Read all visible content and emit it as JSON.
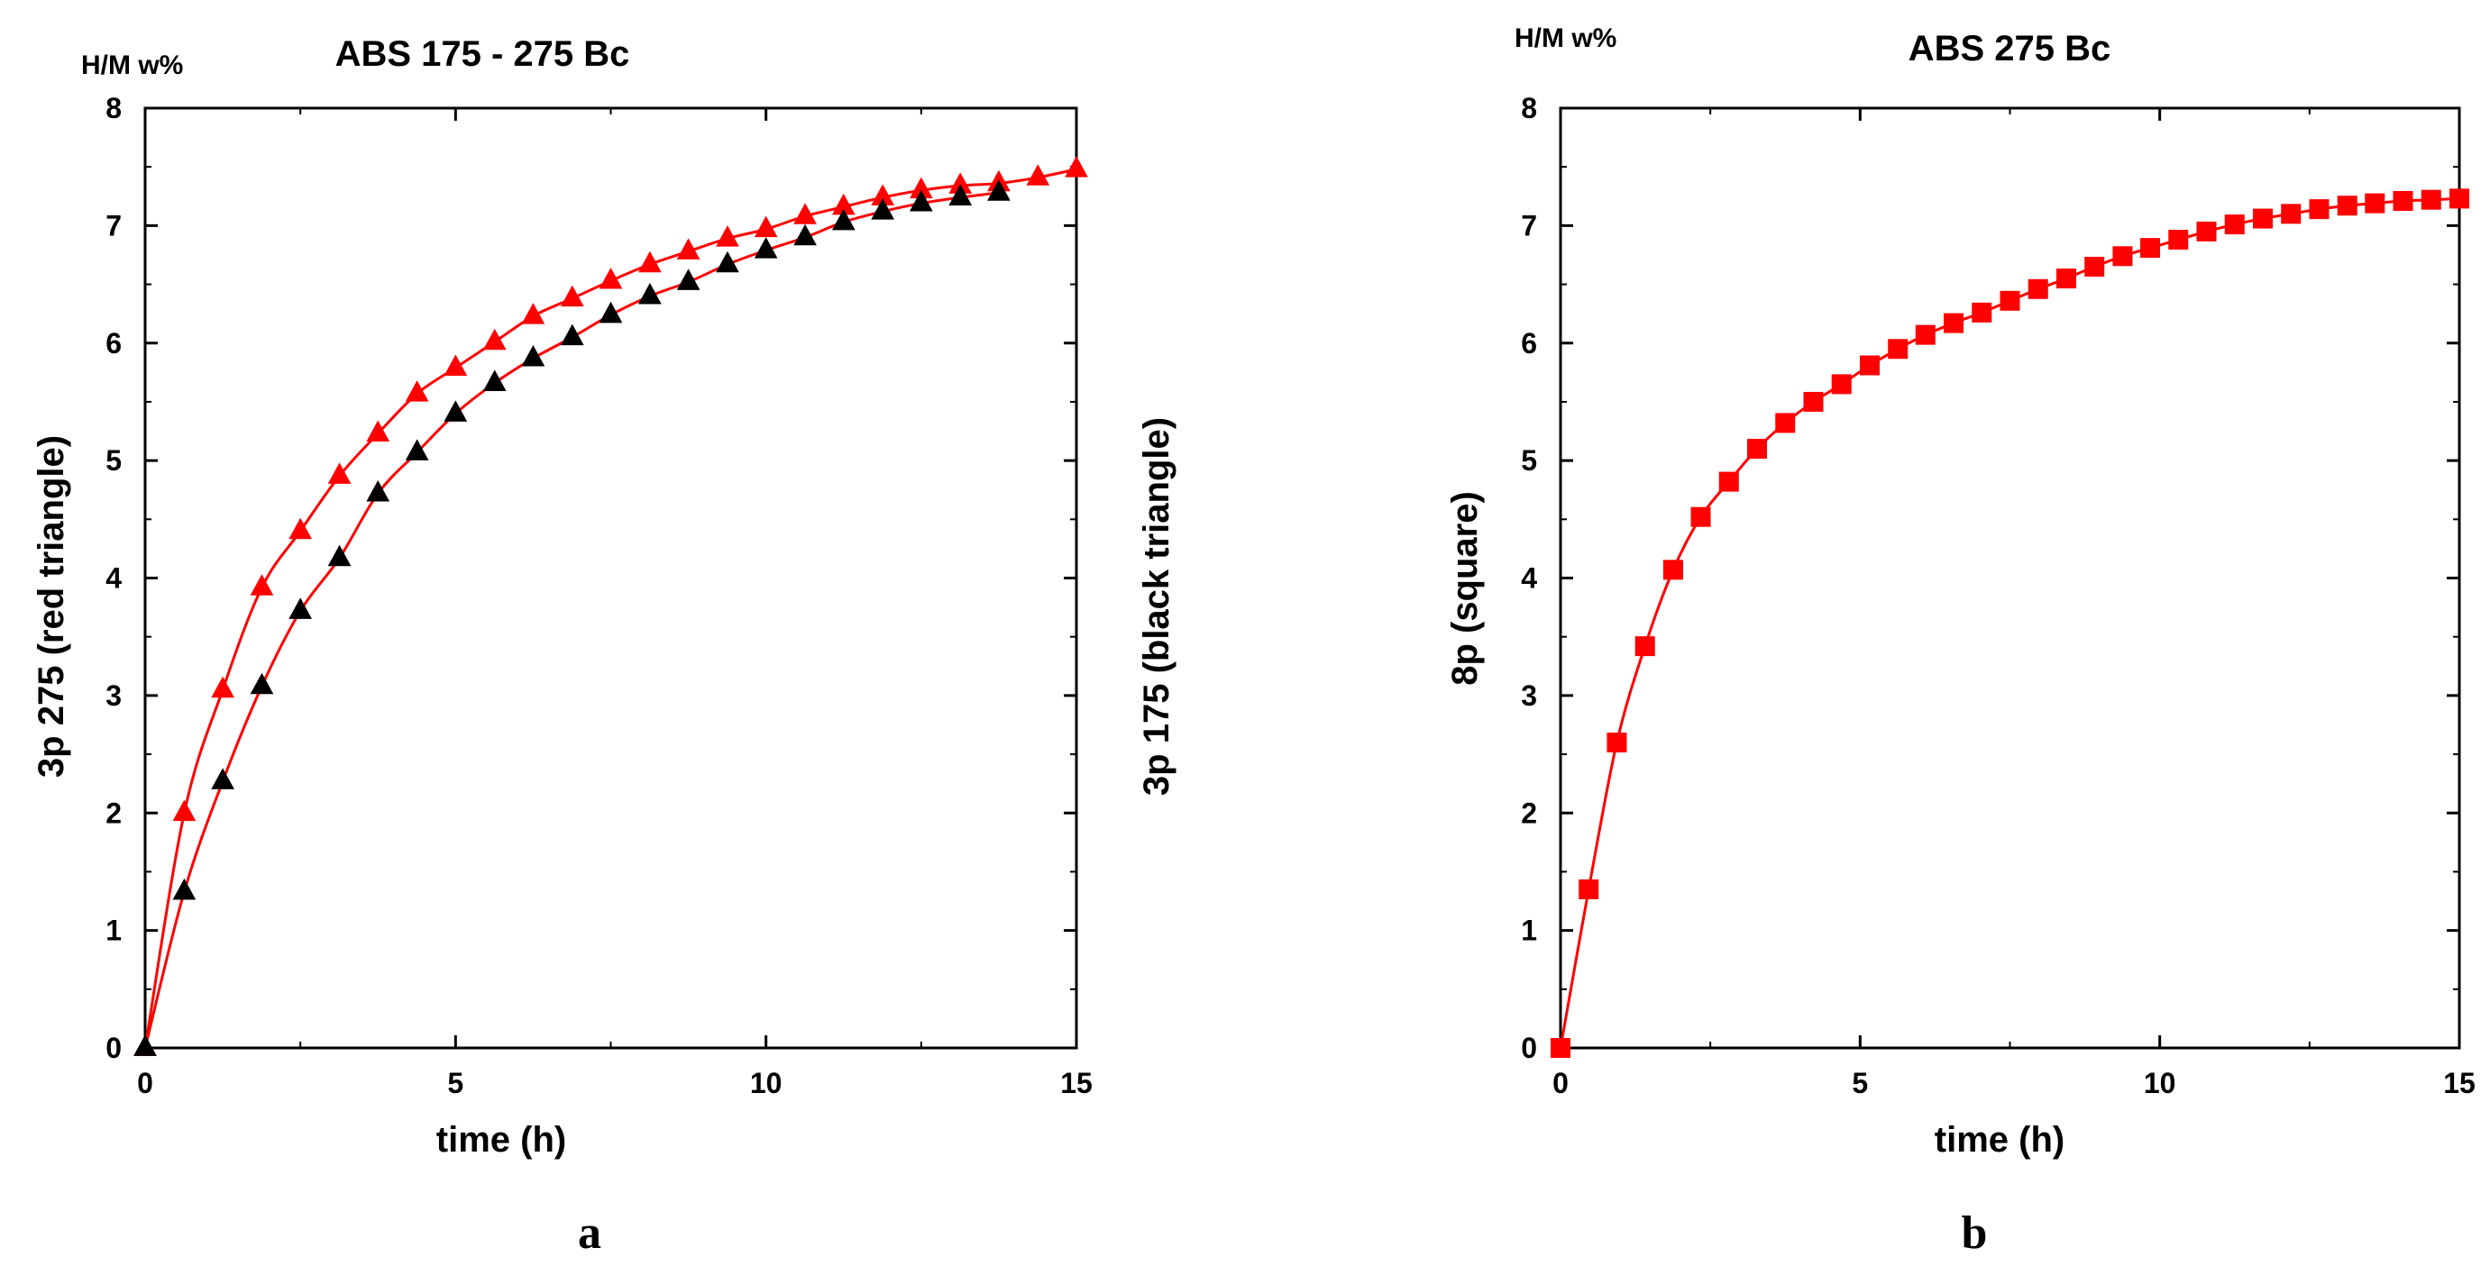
{
  "colors": {
    "red": "#ff0000",
    "black": "#000000",
    "frame": "#000000"
  },
  "chart_data": [
    {
      "type": "line",
      "panel": "a",
      "title": "ABS 175 - 275 Bc",
      "unit_label": "H/M w%",
      "xlabel": "time (h)",
      "ylabel_left": "3p 275 (red triangle)",
      "ylabel_right": "3p 175 (black triangle)",
      "xlim": [
        0,
        15
      ],
      "ylim": [
        0,
        8
      ],
      "xticks": [
        0,
        5,
        10,
        15
      ],
      "yticks": [
        0,
        1,
        2,
        3,
        4,
        5,
        6,
        7,
        8
      ],
      "series": [
        {
          "name": "3p 275",
          "color": "#ff0000",
          "marker": "triangle",
          "x": [
            0,
            0.63,
            1.25,
            1.88,
            2.5,
            3.13,
            3.75,
            4.38,
            5.0,
            5.63,
            6.25,
            6.88,
            7.5,
            8.13,
            8.75,
            9.38,
            10.0,
            10.63,
            11.25,
            11.88,
            12.5,
            13.13,
            13.75,
            14.38,
            15.0
          ],
          "y": [
            0,
            2.0,
            3.05,
            3.92,
            4.4,
            4.87,
            5.23,
            5.57,
            5.79,
            6.01,
            6.23,
            6.38,
            6.53,
            6.67,
            6.78,
            6.89,
            6.97,
            7.08,
            7.16,
            7.24,
            7.3,
            7.34,
            7.36,
            7.41,
            7.48
          ]
        },
        {
          "name": "3p 175",
          "color": "#000000",
          "marker": "triangle",
          "x": [
            0,
            0.63,
            1.25,
            1.88,
            2.5,
            3.13,
            3.75,
            4.38,
            5.0,
            5.63,
            6.25,
            6.88,
            7.5,
            8.13,
            8.75,
            9.38,
            10.0,
            10.63,
            11.25,
            11.88,
            12.5,
            13.13,
            13.75
          ],
          "y": [
            0,
            1.33,
            2.27,
            3.08,
            3.72,
            4.17,
            4.72,
            5.07,
            5.4,
            5.66,
            5.87,
            6.05,
            6.24,
            6.4,
            6.52,
            6.67,
            6.79,
            6.9,
            7.03,
            7.12,
            7.19,
            7.24,
            7.28
          ]
        }
      ]
    },
    {
      "type": "line",
      "panel": "b",
      "title": "ABS 275 Bc",
      "unit_label": "H/M w%",
      "xlabel": "time (h)",
      "ylabel_left": "8p (square)",
      "xlim": [
        0,
        15
      ],
      "ylim": [
        0,
        8
      ],
      "xticks": [
        0,
        5,
        10,
        15
      ],
      "yticks": [
        0,
        1,
        2,
        3,
        4,
        5,
        6,
        7,
        8
      ],
      "series": [
        {
          "name": "8p",
          "color": "#ff0000",
          "marker": "square",
          "x": [
            0,
            0.47,
            0.94,
            1.41,
            1.88,
            2.34,
            2.81,
            3.28,
            3.75,
            4.22,
            4.69,
            5.16,
            5.63,
            6.09,
            6.56,
            7.03,
            7.5,
            7.97,
            8.44,
            8.91,
            9.38,
            9.84,
            10.31,
            10.78,
            11.25,
            11.72,
            12.19,
            12.66,
            13.13,
            13.59,
            14.06,
            14.53,
            15.0
          ],
          "y": [
            0,
            1.35,
            2.6,
            3.42,
            4.07,
            4.52,
            4.82,
            5.1,
            5.32,
            5.5,
            5.65,
            5.81,
            5.95,
            6.07,
            6.17,
            6.26,
            6.36,
            6.46,
            6.55,
            6.65,
            6.74,
            6.81,
            6.88,
            6.95,
            7.01,
            7.06,
            7.1,
            7.14,
            7.17,
            7.19,
            7.21,
            7.22,
            7.23
          ]
        }
      ]
    }
  ]
}
